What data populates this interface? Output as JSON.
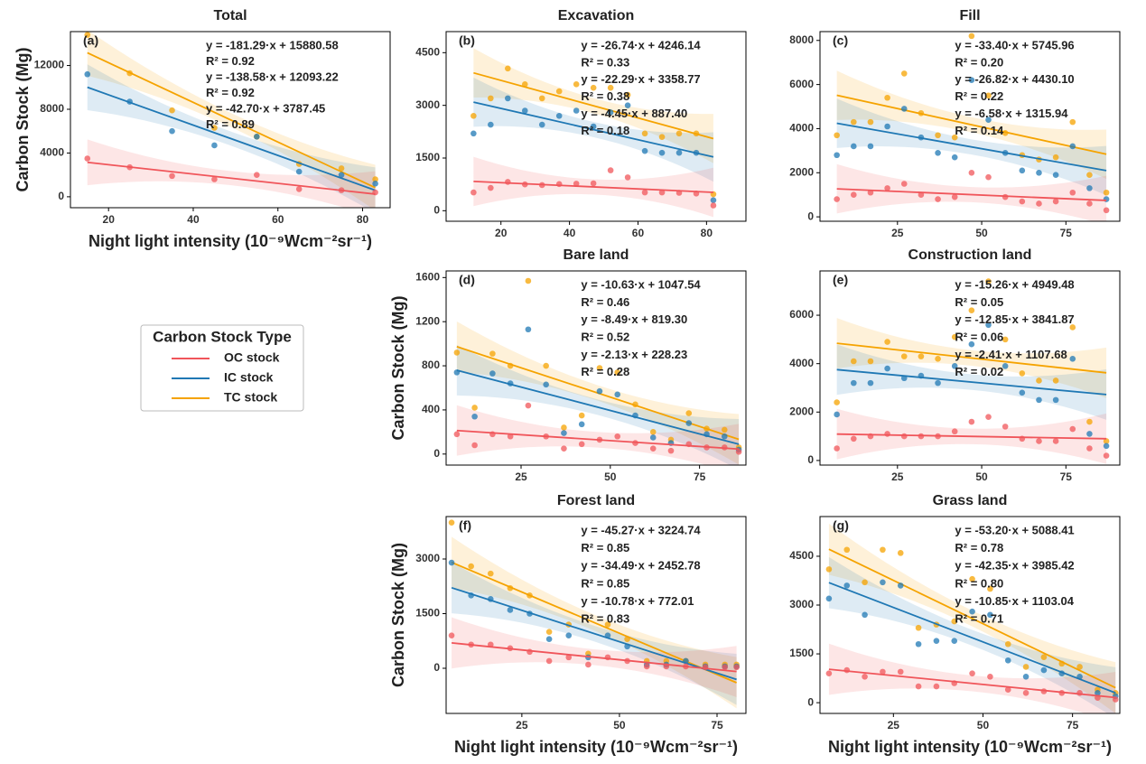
{
  "chart_data": [
    {
      "type": "scatter",
      "title": "Total",
      "panel_label": "(a)",
      "ylabel": "Carbon Stock (Mg)",
      "xlabel": "Night light intensity (10⁻⁹Wcm⁻²sr⁻¹)",
      "legend": {
        "title": "Carbon Stock Type"
      },
      "x": [
        15,
        25,
        35,
        45,
        55,
        65,
        75,
        83
      ],
      "xlim": [
        11,
        86.5
      ],
      "xticks": [
        20,
        40,
        60,
        80
      ],
      "ylim": [
        -1000,
        15100
      ],
      "yticks": [
        0,
        4000,
        8000,
        12000
      ],
      "series": [
        {
          "name": "TC stock",
          "color": "#f5a300",
          "values": [
            14800,
            11300,
            7900,
            6300,
            5500,
            3000,
            2600,
            1600
          ],
          "fit": {
            "slope": -181.29,
            "intercept": 15880.58,
            "equation": "y = -181.29·x + 15880.58",
            "r2": "R² = 0.92"
          }
        },
        {
          "name": "IC stock",
          "color": "#1f78b4",
          "values": [
            11200,
            8700,
            6000,
            4700,
            5500,
            2300,
            2000,
            1200
          ],
          "fit": {
            "slope": -138.58,
            "intercept": 12093.22,
            "equation": "y = -138.58·x + 12093.22",
            "r2": "R² = 0.92"
          }
        },
        {
          "name": "OC stock",
          "color": "#f0555a",
          "values": [
            3500,
            2700,
            1900,
            1600,
            2000,
            700,
            600,
            400
          ],
          "fit": {
            "slope": -42.7,
            "intercept": 3787.45,
            "equation": "y = -42.70·x + 3787.45",
            "r2": "R² = 0.89"
          }
        }
      ]
    },
    {
      "type": "scatter",
      "title": "Excavation",
      "panel_label": "(b)",
      "x": [
        12,
        17,
        22,
        27,
        32,
        37,
        42,
        47,
        52,
        57,
        62,
        67,
        72,
        77,
        82
      ],
      "xlim": [
        4,
        91.5
      ],
      "xticks": [
        20,
        40,
        60,
        80
      ],
      "ylim": [
        -300,
        5100
      ],
      "yticks": [
        0,
        1500,
        3000,
        4500
      ],
      "series": [
        {
          "color": "#f5a300",
          "values": [
            2700,
            3200,
            4050,
            3600,
            3200,
            3400,
            3600,
            3500,
            3500,
            3300,
            2200,
            2100,
            2200,
            2200,
            470
          ],
          "fit": {
            "slope": -26.74,
            "intercept": 4246.14,
            "equation": "y = -26.74·x + 4246.14",
            "r2": "R² = 0.33"
          }
        },
        {
          "color": "#1f78b4",
          "values": [
            2200,
            2450,
            3200,
            2850,
            2450,
            2700,
            2850,
            2400,
            2800,
            3000,
            1700,
            1650,
            1650,
            1650,
            300
          ],
          "fit": {
            "slope": -22.29,
            "intercept": 3358.77,
            "equation": "y = -22.29·x + 3358.77",
            "r2": "R² = 0.38"
          }
        },
        {
          "color": "#f0555a",
          "values": [
            520,
            650,
            820,
            750,
            730,
            760,
            770,
            780,
            1150,
            950,
            520,
            520,
            510,
            490,
            150
          ],
          "fit": {
            "slope": -4.45,
            "intercept": 887.4,
            "equation": "y = -4.45·x + 887.40",
            "r2": "R² = 0.18"
          }
        }
      ]
    },
    {
      "type": "scatter",
      "title": "Fill",
      "panel_label": "(c)",
      "x": [
        7,
        12,
        17,
        22,
        27,
        32,
        37,
        42,
        47,
        52,
        57,
        62,
        67,
        72,
        77,
        82,
        87
      ],
      "xlim": [
        2,
        91
      ],
      "xticks": [
        25,
        50,
        75
      ],
      "ylim": [
        -200,
        8400
      ],
      "yticks": [
        0,
        2000,
        4000,
        6000,
        8000
      ],
      "series": [
        {
          "color": "#f5a300",
          "values": [
            3700,
            4300,
            4300,
            5400,
            6500,
            4700,
            3700,
            3600,
            8200,
            5500,
            3800,
            2800,
            2600,
            2700,
            4300,
            1900,
            1100
          ],
          "fit": {
            "slope": -33.4,
            "intercept": 5745.96,
            "equation": "y = -33.40·x + 5745.96",
            "r2": "R² = 0.20"
          }
        },
        {
          "color": "#1f78b4",
          "values": [
            2800,
            3200,
            3200,
            4100,
            4900,
            3600,
            2900,
            2700,
            6200,
            4400,
            2900,
            2100,
            2000,
            1900,
            3200,
            1300,
            800
          ],
          "fit": {
            "slope": -26.82,
            "intercept": 4430.1,
            "equation": "y = -26.82·x + 4430.10",
            "r2": "R² = 0.22"
          }
        },
        {
          "color": "#f0555a",
          "values": [
            800,
            1000,
            1100,
            1300,
            1500,
            1000,
            800,
            900,
            2000,
            1800,
            900,
            700,
            600,
            700,
            1100,
            600,
            300
          ],
          "fit": {
            "slope": -6.58,
            "intercept": 1315.94,
            "equation": "y = -6.58·x + 1315.94",
            "r2": "R² = 0.14"
          }
        }
      ]
    },
    {
      "type": "scatter",
      "title": "Bare land",
      "panel_label": "(d)",
      "ylabel": "Carbon Stock (Mg)",
      "x": [
        7,
        12,
        17,
        22,
        27,
        32,
        37,
        42,
        47,
        52,
        57,
        62,
        67,
        72,
        77,
        82,
        86
      ],
      "xlim": [
        4,
        88
      ],
      "xticks": [
        25,
        50,
        75
      ],
      "ylim": [
        -100,
        1660
      ],
      "yticks": [
        0,
        400,
        800,
        1200,
        1600
      ],
      "series": [
        {
          "color": "#f5a300",
          "values": [
            920,
            420,
            910,
            800,
            1570,
            800,
            240,
            350,
            780,
            740,
            450,
            200,
            130,
            370,
            230,
            220,
            60
          ],
          "fit": {
            "slope": -10.63,
            "intercept": 1047.54,
            "equation": "y = -10.63·x + 1047.54",
            "r2": "R² = 0.46"
          }
        },
        {
          "color": "#1f78b4",
          "values": [
            740,
            340,
            730,
            640,
            1130,
            630,
            190,
            270,
            570,
            540,
            350,
            150,
            100,
            280,
            180,
            160,
            40
          ],
          "fit": {
            "slope": -8.49,
            "intercept": 819.3,
            "equation": "y = -8.49·x + 819.30",
            "r2": "R² = 0.52"
          }
        },
        {
          "color": "#f0555a",
          "values": [
            180,
            80,
            180,
            160,
            440,
            160,
            50,
            90,
            130,
            160,
            100,
            50,
            30,
            90,
            60,
            60,
            20
          ],
          "fit": {
            "slope": -2.13,
            "intercept": 228.23,
            "equation": "y = -2.13·x + 228.23",
            "r2": "R² = 0.28"
          }
        }
      ]
    },
    {
      "type": "scatter",
      "title": "Construction land",
      "panel_label": "(e)",
      "x": [
        7,
        12,
        17,
        22,
        27,
        32,
        37,
        42,
        47,
        52,
        57,
        62,
        67,
        72,
        77,
        82,
        87
      ],
      "xlim": [
        2,
        91
      ],
      "xticks": [
        25,
        50,
        75
      ],
      "ylim": [
        -190,
        7830
      ],
      "yticks": [
        0,
        2000,
        4000,
        6000
      ],
      "series": [
        {
          "color": "#f5a300",
          "values": [
            2400,
            4100,
            4100,
            4900,
            4300,
            4300,
            4200,
            5100,
            6200,
            7400,
            5000,
            3600,
            3300,
            3300,
            5500,
            1600,
            800
          ],
          "fit": {
            "slope": -15.26,
            "intercept": 4949.48,
            "equation": "y = -15.26·x + 4949.48",
            "r2": "R² = 0.05"
          }
        },
        {
          "color": "#1f78b4",
          "values": [
            1900,
            3200,
            3200,
            3800,
            3400,
            3500,
            3200,
            3900,
            4800,
            5600,
            3900,
            2800,
            2500,
            2500,
            4200,
            1100,
            600
          ],
          "fit": {
            "slope": -12.85,
            "intercept": 3841.87,
            "equation": "y = -12.85·x + 3841.87",
            "r2": "R² = 0.06"
          }
        },
        {
          "color": "#f0555a",
          "values": [
            500,
            900,
            1000,
            1100,
            1000,
            1000,
            1000,
            1200,
            1600,
            1800,
            1400,
            900,
            800,
            800,
            1300,
            500,
            200
          ],
          "fit": {
            "slope": -2.41,
            "intercept": 1107.68,
            "equation": "y = -2.41·x + 1107.68",
            "r2": "R² = 0.02"
          }
        }
      ]
    },
    {
      "type": "scatter",
      "title": "Forest land",
      "panel_label": "(f)",
      "ylabel": "Carbon Stock (Mg)",
      "xlabel": "Night light intensity (10⁻⁹Wcm⁻²sr⁻¹)",
      "x": [
        7,
        12,
        17,
        22,
        27,
        32,
        37,
        42,
        47,
        52,
        57,
        62,
        67,
        72,
        77,
        80
      ],
      "xlim": [
        5.6,
        82.4
      ],
      "xticks": [
        25,
        50,
        75
      ],
      "ylim": [
        -1240,
        4165
      ],
      "yticks": [
        0,
        1500,
        3000
      ],
      "series": [
        {
          "color": "#f5a300",
          "values": [
            4000,
            2800,
            2600,
            2200,
            2000,
            1000,
            1200,
            400,
            1200,
            800,
            200,
            200,
            200,
            100,
            100,
            100
          ],
          "fit": {
            "slope": -45.27,
            "intercept": 3224.74,
            "equation": "y = -45.27·x + 3224.74",
            "r2": "R² = 0.85"
          }
        },
        {
          "color": "#1f78b4",
          "values": [
            2900,
            2000,
            1900,
            1600,
            1500,
            800,
            900,
            300,
            900,
            600,
            100,
            100,
            200,
            50,
            50,
            50
          ],
          "fit": {
            "slope": -34.49,
            "intercept": 2452.78,
            "equation": "y = -34.49·x + 2452.78",
            "r2": "R² = 0.85"
          }
        },
        {
          "color": "#f0555a",
          "values": [
            900,
            650,
            650,
            550,
            450,
            200,
            300,
            100,
            300,
            200,
            50,
            50,
            50,
            30,
            30,
            30
          ],
          "fit": {
            "slope": -10.78,
            "intercept": 772.01,
            "equation": "y = -10.78·x + 772.01",
            "r2": "R² = 0.83"
          }
        }
      ]
    },
    {
      "type": "scatter",
      "title": "Grass land",
      "panel_label": "(g)",
      "xlabel": "Night light intensity (10⁻⁹Wcm⁻²sr⁻¹)",
      "x": [
        7,
        12,
        17,
        22,
        27,
        32,
        37,
        42,
        47,
        52,
        57,
        62,
        67,
        72,
        77,
        82,
        87
      ],
      "xlim": [
        4.5,
        88.2
      ],
      "xticks": [
        25,
        50,
        75
      ],
      "ylim": [
        -330,
        5720
      ],
      "yticks": [
        0,
        1500,
        3000,
        4500
      ],
      "series": [
        {
          "color": "#f5a300",
          "values": [
            4100,
            4700,
            3700,
            4700,
            4600,
            2300,
            2400,
            2500,
            3800,
            3500,
            1800,
            1100,
            1400,
            1200,
            1100,
            400,
            300
          ],
          "fit": {
            "slope": -53.2,
            "intercept": 5088.41,
            "equation": "y = -53.20·x + 5088.41",
            "r2": "R² = 0.78"
          }
        },
        {
          "color": "#1f78b4",
          "values": [
            3200,
            3600,
            2700,
            3700,
            3600,
            1800,
            1900,
            1900,
            2800,
            2700,
            1300,
            800,
            1000,
            900,
            800,
            300,
            200
          ],
          "fit": {
            "slope": -42.35,
            "intercept": 3985.42,
            "equation": "y = -42.35·x + 3985.42",
            "r2": "R² = 0.80"
          }
        },
        {
          "color": "#f0555a",
          "values": [
            900,
            1000,
            800,
            950,
            950,
            500,
            500,
            600,
            900,
            800,
            400,
            300,
            350,
            300,
            300,
            150,
            100
          ],
          "fit": {
            "slope": -10.85,
            "intercept": 1103.04,
            "equation": "y = -10.85·x + 1103.04",
            "r2": "R² = 0.71"
          }
        }
      ]
    }
  ]
}
